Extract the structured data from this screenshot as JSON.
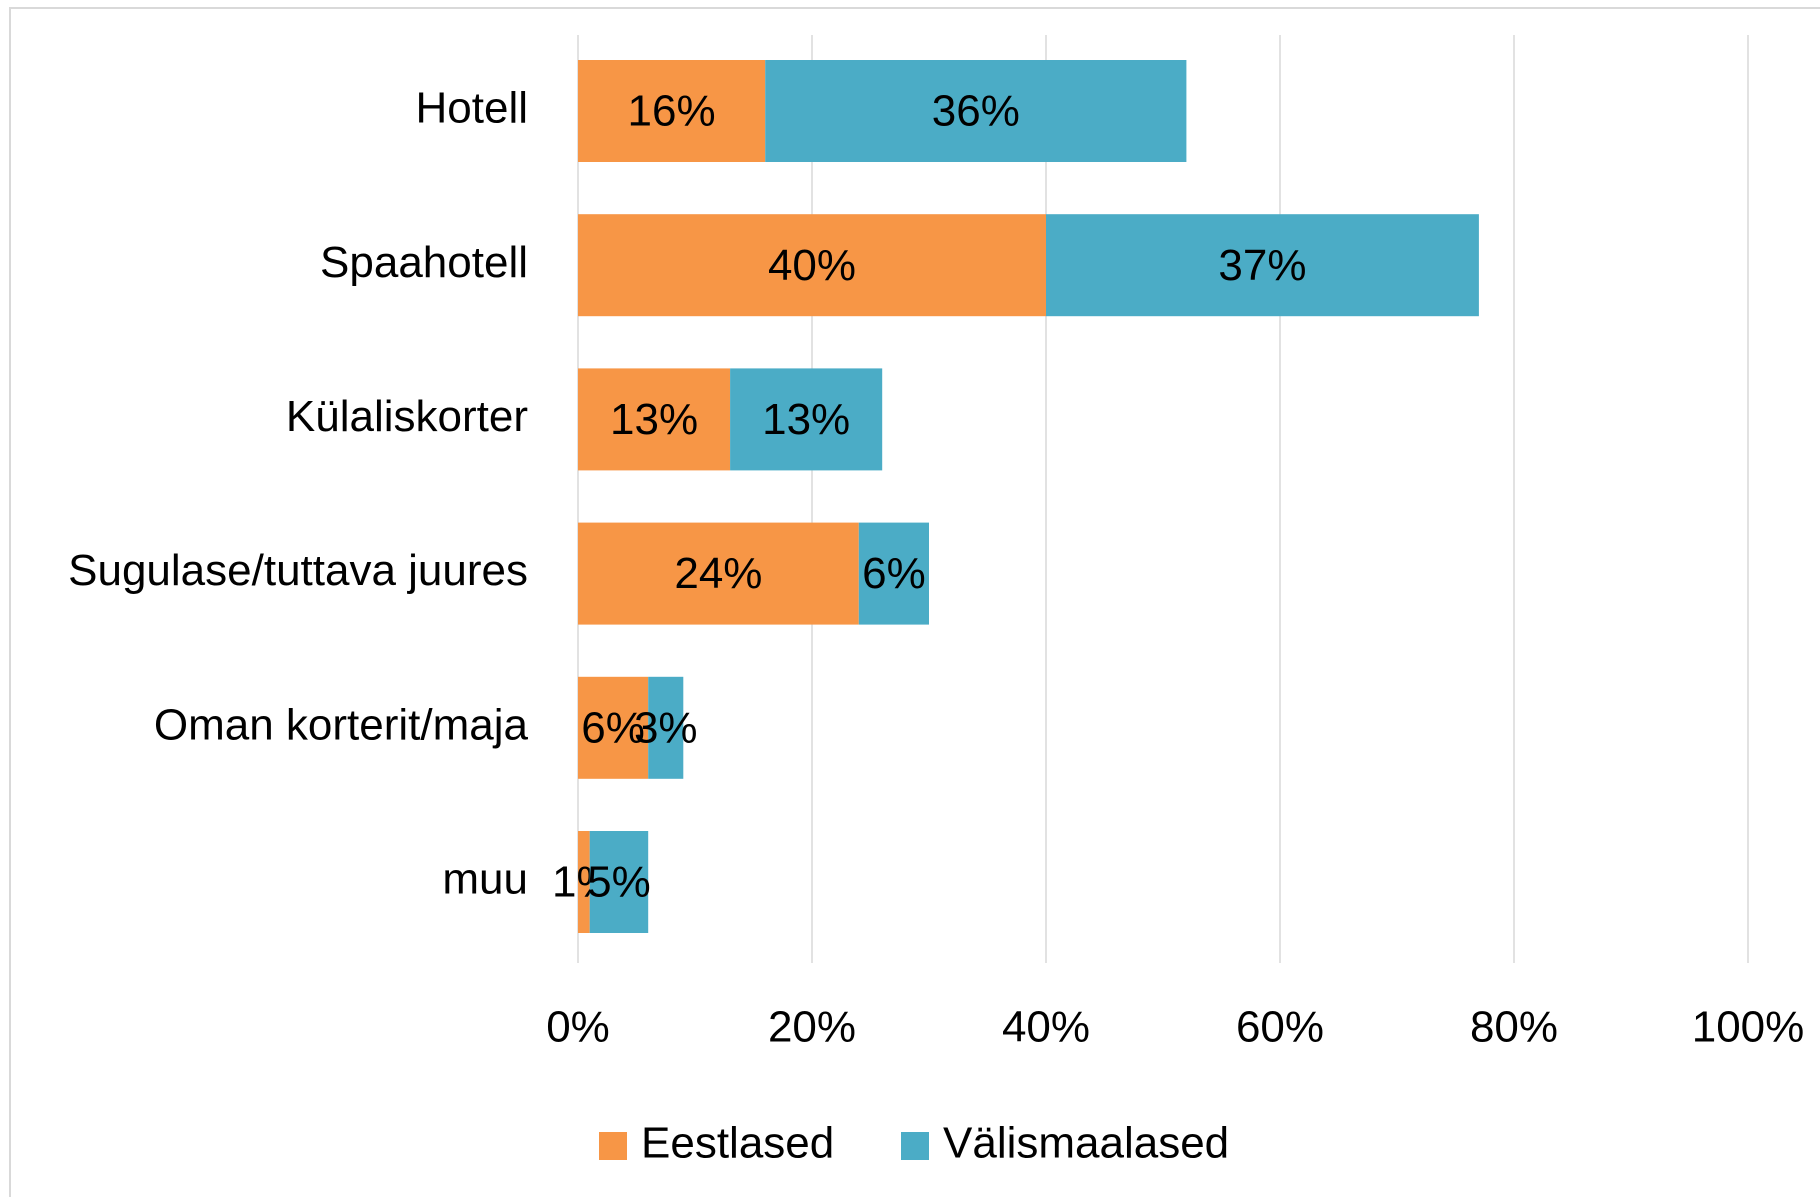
{
  "chart_data": {
    "type": "stacked-bar-horizontal",
    "categories": [
      "Hotell",
      "Spaahotell",
      "Külaliskorter",
      "Sugulase/tuttava juures",
      "Oman korterit/maja",
      "muu"
    ],
    "series": [
      {
        "name": "Eestlased",
        "color": "#f79646",
        "values": [
          16,
          40,
          13,
          24,
          6,
          1
        ],
        "value_labels": [
          "16%",
          "40%",
          "13%",
          "24%",
          "6%",
          "1%"
        ]
      },
      {
        "name": "Välismaalased",
        "color": "#4bacc6",
        "values": [
          36,
          37,
          13,
          6,
          3,
          5
        ],
        "value_labels": [
          "36%",
          "37%",
          "13%",
          "6%",
          "3%",
          "5%"
        ]
      }
    ],
    "xlim": [
      0,
      100
    ],
    "xticks": [
      {
        "value": 0,
        "label": "0%"
      },
      {
        "value": 20,
        "label": "20%"
      },
      {
        "value": 40,
        "label": "40%"
      },
      {
        "value": 60,
        "label": "60%"
      },
      {
        "value": 80,
        "label": "80%"
      },
      {
        "value": 100,
        "label": "100%"
      }
    ],
    "grid": true,
    "legend": "bottom"
  }
}
